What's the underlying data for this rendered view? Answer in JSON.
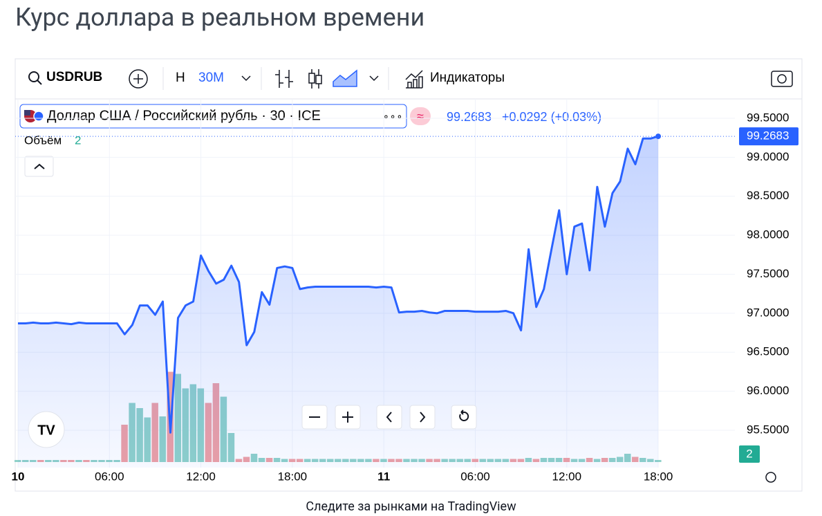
{
  "header": {
    "title": "Курс доллара в реальном времени"
  },
  "toolbar": {
    "chart_style": "Н",
    "interval": "30М",
    "indicators": "Индикаторы"
  },
  "legend": {
    "description": "Доллар США / Российский рубль · 30 · ICE",
    "change": "+0.0292 (+0.03%)",
    "volume_label": "Объём"
  },
  "chart_data": {
    "type": "line",
    "x": [
      0,
      0.5,
      1,
      1.5,
      2,
      2.5,
      3,
      3.5,
      4,
      4.5,
      5,
      5.5,
      6,
      6.5,
      7,
      7.5,
      8,
      8.5,
      9,
      9.5,
      10,
      10.5,
      11,
      11.5,
      12,
      12.5,
      13,
      13.5,
      14,
      14.5,
      15,
      15.5,
      16,
      16.5,
      17,
      17.5,
      18,
      18.5,
      19,
      19.5,
      20,
      20.5,
      21,
      21.5,
      22,
      22.5,
      23,
      23.5,
      24,
      24.5,
      25,
      25.5,
      26,
      26.5,
      27,
      27.5,
      28,
      28.5,
      29,
      29.5,
      30,
      30.5,
      31,
      31.5,
      32,
      32.5,
      33,
      33.5,
      34,
      34.5,
      35,
      35.5,
      36,
      36.5,
      37,
      37.5,
      38,
      38.5,
      39,
      39.5,
      40,
      40.5,
      41,
      41.5,
      42
    ],
    "series": [
      {
        "name": "USDRUB",
        "color": "#2962ff",
        "values": [
          96.87,
          96.87,
          96.88,
          96.87,
          96.87,
          96.88,
          96.87,
          96.86,
          96.88,
          96.87,
          96.87,
          96.87,
          96.87,
          96.87,
          96.73,
          96.85,
          97.1,
          97.1,
          96.98,
          97.15,
          95.47,
          96.94,
          97.1,
          97.15,
          97.74,
          97.54,
          97.38,
          97.43,
          97.61,
          97.4,
          96.59,
          96.76,
          97.27,
          97.11,
          97.58,
          97.6,
          97.58,
          97.31,
          97.33,
          97.34,
          97.34,
          97.34,
          97.34,
          97.34,
          97.34,
          97.34,
          97.34,
          97.33,
          97.34,
          97.33,
          97.01,
          97.02,
          97.02,
          97.03,
          97.01,
          97.0,
          97.03,
          97.03,
          97.03,
          97.03,
          97.02,
          97.02,
          97.02,
          97.02,
          97.03,
          97.0,
          96.78,
          97.82,
          97.08,
          97.31,
          97.82,
          98.32,
          97.5,
          98.11,
          98.15,
          97.55,
          98.62,
          98.11,
          98.54,
          98.69,
          99.11,
          98.91,
          99.24,
          99.24,
          99.2683
        ]
      }
    ],
    "volume": {
      "values": [
        2,
        2,
        2,
        2,
        2,
        2,
        2,
        2,
        2,
        2,
        2,
        2,
        2,
        2,
        36,
        57,
        52,
        43,
        57,
        44,
        87,
        85,
        71,
        75,
        71,
        57,
        76,
        63,
        28,
        3,
        5,
        8,
        4,
        4,
        4,
        3,
        3,
        3,
        3,
        3,
        3,
        3,
        3,
        3,
        3,
        3,
        3,
        3,
        3,
        3,
        3,
        3,
        3,
        3,
        3,
        3,
        3,
        3,
        3,
        3,
        3,
        3,
        3,
        3,
        3,
        3,
        3,
        4,
        3,
        4,
        4,
        4,
        4,
        3,
        3,
        4,
        3,
        4,
        4,
        5,
        8,
        5,
        4,
        3,
        2
      ],
      "up_color": "#8fd1c9",
      "down_color": "#eea0a4",
      "ylim": [
        0,
        110
      ]
    },
    "xlim": [
      -0.18,
      47.03
    ],
    "xticks": [
      {
        "value": 0,
        "label": "10"
      },
      {
        "value": 6,
        "label": "06:00"
      },
      {
        "value": 12,
        "label": "12:00"
      },
      {
        "value": 18,
        "label": "18:00"
      },
      {
        "value": 24,
        "label": "11"
      },
      {
        "value": 30,
        "label": "06:00"
      },
      {
        "value": 36,
        "label": "12:00"
      },
      {
        "value": 42,
        "label": "18:00"
      }
    ],
    "ylim": [
      95.021,
      99.748
    ],
    "yticks": [
      {
        "value": 95.5,
        "label": "95.5000"
      },
      {
        "value": 96,
        "label": "96.0000"
      },
      {
        "value": 96.5,
        "label": "96.5000"
      },
      {
        "value": 97,
        "label": "97.0000"
      },
      {
        "value": 97.5,
        "label": "97.5000"
      },
      {
        "value": 98,
        "label": "98.0000"
      },
      {
        "value": 98.5,
        "label": "98.5000"
      },
      {
        "value": 99,
        "label": "99.0000"
      },
      {
        "value": 99.5,
        "label": "99.5000"
      }
    ],
    "grid": true
  },
  "footer": {
    "text": "Следите за рынками на TradingView"
  }
}
